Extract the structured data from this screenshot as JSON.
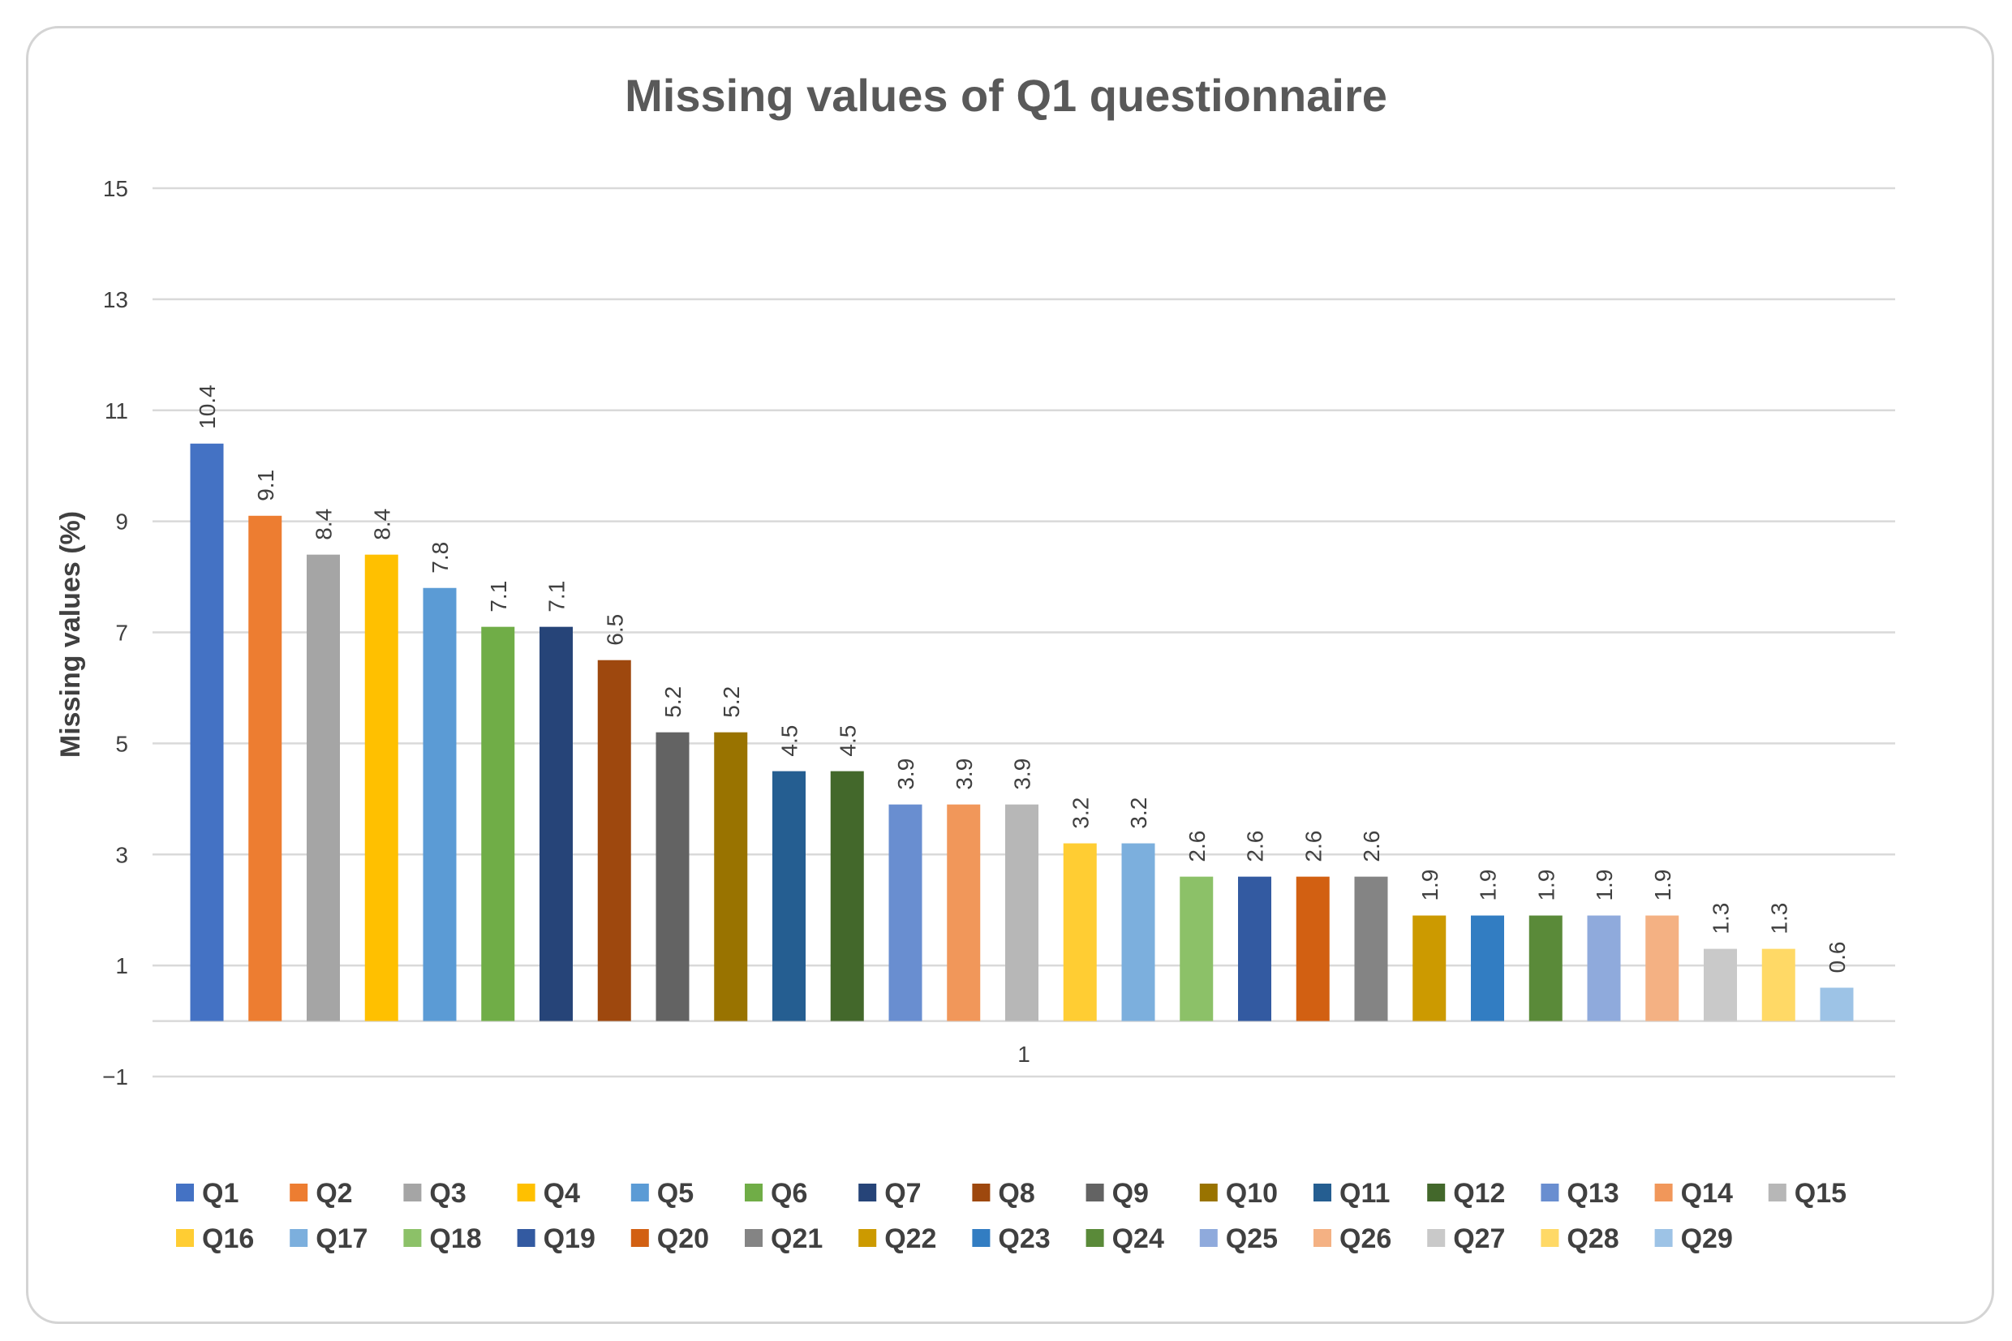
{
  "chart_data": {
    "type": "bar",
    "title": "Missing values of Q1 questionnaire",
    "ylabel": "Missing values (%)",
    "xlabel": "",
    "categories": [
      "1"
    ],
    "ylim": [
      -1,
      15
    ],
    "yticks": [
      -1,
      1,
      3,
      5,
      7,
      9,
      11,
      13,
      15
    ],
    "grid": true,
    "legend_position": "bottom",
    "series": [
      {
        "name": "Q1",
        "value": 10.4,
        "label": "10.4",
        "color": "#4472C4"
      },
      {
        "name": "Q2",
        "value": 9.1,
        "label": "9.1",
        "color": "#ED7D31"
      },
      {
        "name": "Q3",
        "value": 8.4,
        "label": "8.4",
        "color": "#A5A5A5"
      },
      {
        "name": "Q4",
        "value": 8.4,
        "label": "8.4",
        "color": "#FFC000"
      },
      {
        "name": "Q5",
        "value": 7.8,
        "label": "7.8",
        "color": "#5B9BD5"
      },
      {
        "name": "Q6",
        "value": 7.1,
        "label": "7.1",
        "color": "#70AD47"
      },
      {
        "name": "Q7",
        "value": 7.1,
        "label": "7.1",
        "color": "#264478"
      },
      {
        "name": "Q8",
        "value": 6.5,
        "label": "6.5",
        "color": "#9E480E"
      },
      {
        "name": "Q9",
        "value": 5.2,
        "label": "5.2",
        "color": "#636363"
      },
      {
        "name": "Q10",
        "value": 5.2,
        "label": "5.2",
        "color": "#997300"
      },
      {
        "name": "Q11",
        "value": 4.5,
        "label": "4.5",
        "color": "#255E91"
      },
      {
        "name": "Q12",
        "value": 4.5,
        "label": "4.5",
        "color": "#43682B"
      },
      {
        "name": "Q13",
        "value": 3.9,
        "label": "3.9",
        "color": "#698ED0"
      },
      {
        "name": "Q14",
        "value": 3.9,
        "label": "3.9",
        "color": "#F1975A"
      },
      {
        "name": "Q15",
        "value": 3.9,
        "label": "3.9",
        "color": "#B7B7B7"
      },
      {
        "name": "Q16",
        "value": 3.2,
        "label": "3.2",
        "color": "#FFCD33"
      },
      {
        "name": "Q17",
        "value": 3.2,
        "label": "3.2",
        "color": "#7CAFDD"
      },
      {
        "name": "Q18",
        "value": 2.6,
        "label": "2.6",
        "color": "#8CC168"
      },
      {
        "name": "Q19",
        "value": 2.6,
        "label": "2.6",
        "color": "#335AA1"
      },
      {
        "name": "Q20",
        "value": 2.6,
        "label": "2.6",
        "color": "#D26012"
      },
      {
        "name": "Q21",
        "value": 2.6,
        "label": "2.6",
        "color": "#848484"
      },
      {
        "name": "Q22",
        "value": 1.9,
        "label": "1.9",
        "color": "#CC9A00"
      },
      {
        "name": "Q23",
        "value": 1.9,
        "label": "1.9",
        "color": "#327DC2"
      },
      {
        "name": "Q24",
        "value": 1.9,
        "label": "1.9",
        "color": "#5A8A39"
      },
      {
        "name": "Q25",
        "value": 1.9,
        "label": "1.9",
        "color": "#8FAADC"
      },
      {
        "name": "Q26",
        "value": 1.9,
        "label": "1.9",
        "color": "#F4B183"
      },
      {
        "name": "Q27",
        "value": 1.3,
        "label": "1.3",
        "color": "#C9C9C9"
      },
      {
        "name": "Q28",
        "value": 1.3,
        "label": "1.3",
        "color": "#FFD966"
      },
      {
        "name": "Q29",
        "value": 0.6,
        "label": "0.6",
        "color": "#9DC3E6"
      }
    ]
  }
}
